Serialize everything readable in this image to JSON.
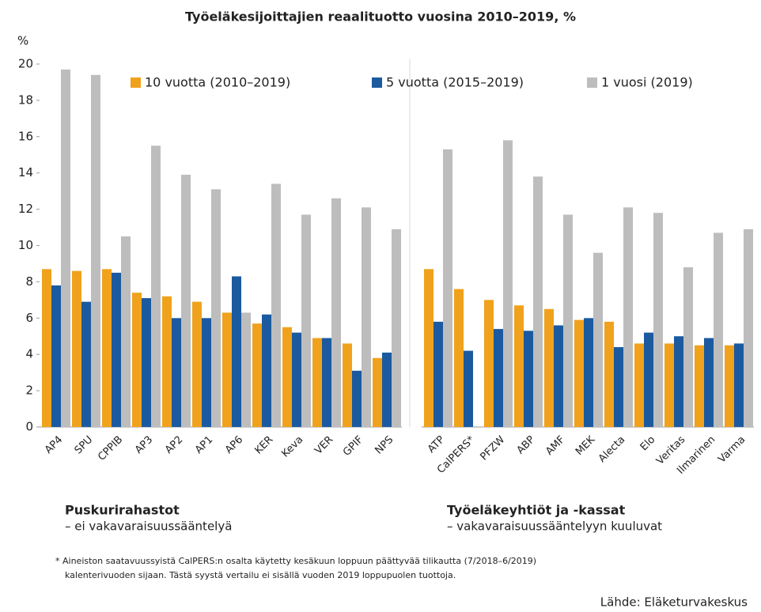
{
  "chart_data": [
    {
      "type": "bar",
      "title": "Työeläkesijoittajien reaalituotto vuosina 2010–2019, %",
      "ylabel": "%",
      "ylim": [
        0,
        20
      ],
      "yticks": [
        0,
        2,
        4,
        6,
        8,
        10,
        12,
        14,
        16,
        18,
        20
      ],
      "label": "Puskurirahastot",
      "sublabel": "– ei vakavaraisuussääntelyä",
      "categories": [
        "AP4",
        "SPU",
        "CPPIB",
        "AP3",
        "AP2",
        "AP1",
        "AP6",
        "KER",
        "Keva",
        "VER",
        "GPIF",
        "NPS"
      ],
      "series": [
        {
          "name": "10 vuotta (2010–2019)",
          "color": "#f0a21c",
          "values": [
            8.7,
            8.6,
            8.7,
            7.4,
            7.2,
            6.9,
            6.3,
            5.7,
            5.5,
            4.9,
            4.6,
            3.8
          ]
        },
        {
          "name": "5 vuotta (2015–2019)",
          "color": "#1c5aa0",
          "values": [
            7.8,
            6.9,
            8.5,
            7.1,
            6.0,
            6.0,
            8.3,
            6.2,
            5.2,
            4.9,
            3.1,
            4.1
          ]
        },
        {
          "name": "1 vuosi (2019)",
          "color": "#bdbdbd",
          "values": [
            19.7,
            19.4,
            10.5,
            15.5,
            13.9,
            13.1,
            6.3,
            13.4,
            11.7,
            12.6,
            12.1,
            10.9
          ]
        }
      ]
    },
    {
      "type": "bar",
      "ylim": [
        0,
        20
      ],
      "label": "Työeläkeyhtiöt ja -kassat",
      "sublabel": "– vakavaraisuussääntelyyn kuuluvat",
      "categories": [
        "ATP",
        "CalPERS*",
        "PFZW",
        "ABP",
        "AMF",
        "MEK",
        "Alecta",
        "Elo",
        "Veritas",
        "Ilmarinen",
        "Varma"
      ],
      "series": [
        {
          "color": "#f0a21c",
          "values": [
            8.7,
            7.6,
            7.0,
            6.7,
            6.5,
            5.9,
            5.8,
            4.6,
            4.6,
            4.5,
            4.5
          ]
        },
        {
          "color": "#1c5aa0",
          "values": [
            5.8,
            4.2,
            5.4,
            5.3,
            5.6,
            6.0,
            4.4,
            5.2,
            5.0,
            4.9,
            4.6
          ]
        },
        {
          "color": "#bdbdbd",
          "values": [
            15.3,
            null,
            15.8,
            13.8,
            11.7,
            9.6,
            12.1,
            11.8,
            8.8,
            10.7,
            10.9
          ]
        }
      ]
    }
  ],
  "footnote": [
    "* Aineiston saatavuussyistä CalPERS:n osalta käytetty kesäkuun loppuun päättyvää tilikautta (7/2018–6/2019)",
    "kalenterivuoden sijaan. Tästä syystä vertailu ei sisällä vuoden 2019 loppupuolen tuottoja."
  ],
  "source": "Lähde: Eläketurvakeskus"
}
